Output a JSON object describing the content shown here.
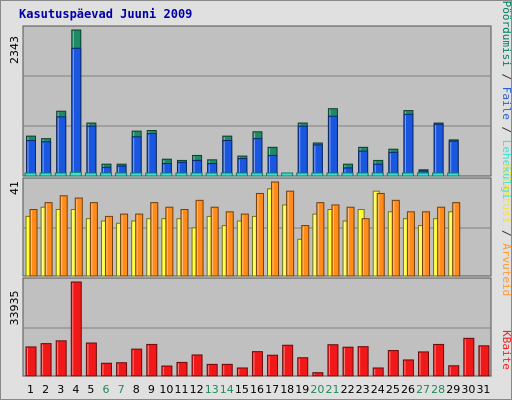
{
  "title": "Kasutuspäevad Juuni 2009",
  "chart_data": [
    {
      "type": "bar",
      "categories": [
        "1",
        "2",
        "3",
        "4",
        "5",
        "6",
        "7",
        "8",
        "9",
        "10",
        "11",
        "12",
        "13",
        "14",
        "15",
        "16",
        "17",
        "18",
        "19",
        "20",
        "21",
        "22",
        "23",
        "24",
        "25",
        "26",
        "27",
        "28",
        "29",
        "30",
        "31"
      ],
      "weekend_days": [
        "6",
        "7",
        "13",
        "14",
        "20",
        "21",
        "27",
        "28"
      ],
      "axis_max_label": "2343",
      "ylim": [
        0,
        2343
      ],
      "legend": [
        {
          "text": "Pöördumisi",
          "color": "#00805f"
        },
        {
          "text": " / ",
          "color": "#333333"
        },
        {
          "text": "Faile",
          "color": "#2b5fcf"
        },
        {
          "text": " / ",
          "color": "#333333"
        },
        {
          "text": "Lehekülgi",
          "color": "#40e0d0"
        }
      ],
      "series": [
        {
          "name": "Pöördumisi",
          "color": "#1f8a67",
          "values": [
            640,
            600,
            1040,
            2343,
            850,
            190,
            190,
            720,
            730,
            270,
            250,
            330,
            260,
            640,
            320,
            710,
            460,
            30,
            850,
            530,
            1080,
            190,
            460,
            250,
            430,
            1050,
            100,
            850,
            580,
            0,
            0
          ]
        },
        {
          "name": "Faile",
          "color": "#1a57e0",
          "values": [
            570,
            550,
            950,
            2050,
            800,
            140,
            160,
            630,
            680,
            200,
            220,
            250,
            200,
            570,
            280,
            600,
            330,
            20,
            800,
            500,
            960,
            130,
            400,
            190,
            380,
            990,
            80,
            830,
            560,
            0,
            0
          ]
        },
        {
          "name": "Lehekülgi",
          "color": "#40e0d0",
          "values": [
            35,
            35,
            45,
            60,
            40,
            8,
            8,
            30,
            35,
            15,
            12,
            15,
            12,
            30,
            15,
            30,
            20,
            2,
            40,
            25,
            45,
            8,
            20,
            10,
            20,
            45,
            5,
            40,
            28,
            0,
            0
          ]
        }
      ]
    },
    {
      "type": "bar",
      "categories": [
        "1",
        "2",
        "3",
        "4",
        "5",
        "6",
        "7",
        "8",
        "9",
        "10",
        "11",
        "12",
        "13",
        "14",
        "15",
        "16",
        "17",
        "18",
        "19",
        "20",
        "21",
        "22",
        "23",
        "24",
        "25",
        "26",
        "27",
        "28",
        "29",
        "30",
        "31"
      ],
      "axis_max_label": "41",
      "ylim": [
        0,
        41
      ],
      "legend": [
        {
          "text": "Külastusi",
          "color": "#f0e040"
        },
        {
          "text": " / ",
          "color": "#333333"
        },
        {
          "text": "Arvuteid",
          "color": "#ff9933"
        }
      ],
      "series": [
        {
          "name": "Külastusi",
          "color": "#ffff33",
          "values": [
            26,
            30,
            29,
            29,
            25,
            24,
            23,
            24,
            25,
            25,
            25,
            21,
            26,
            22,
            24,
            26,
            38,
            31,
            16,
            27,
            29,
            24,
            29,
            37,
            28,
            25,
            22,
            25,
            28,
            0,
            0
          ]
        },
        {
          "name": "Arvuteid",
          "color": "#ff8c1a",
          "values": [
            29,
            32,
            35,
            34,
            32,
            26,
            27,
            27,
            32,
            30,
            29,
            33,
            30,
            28,
            27,
            36,
            41,
            37,
            22,
            32,
            31,
            30,
            25,
            36,
            33,
            28,
            28,
            30,
            32,
            0,
            0
          ]
        }
      ]
    },
    {
      "type": "bar",
      "categories": [
        "1",
        "2",
        "3",
        "4",
        "5",
        "6",
        "7",
        "8",
        "9",
        "10",
        "11",
        "12",
        "13",
        "14",
        "15",
        "16",
        "17",
        "18",
        "19",
        "20",
        "21",
        "22",
        "23",
        "24",
        "25",
        "26",
        "27",
        "28",
        "29",
        "30",
        "31"
      ],
      "axis_max_label": "33935",
      "ylim": [
        0,
        33935
      ],
      "legend": [
        {
          "text": "KBaite",
          "color": "#ee2222"
        }
      ],
      "series": [
        {
          "name": "KBaite",
          "color": "#f01818",
          "values": [
            10500,
            11700,
            12700,
            33935,
            11900,
            4600,
            4800,
            9700,
            11400,
            3600,
            4900,
            7600,
            4200,
            4200,
            2900,
            8800,
            7500,
            11100,
            6600,
            1200,
            11300,
            10400,
            10600,
            2900,
            9200,
            5800,
            8700,
            11400,
            3700,
            13600,
            10900
          ]
        }
      ]
    }
  ]
}
